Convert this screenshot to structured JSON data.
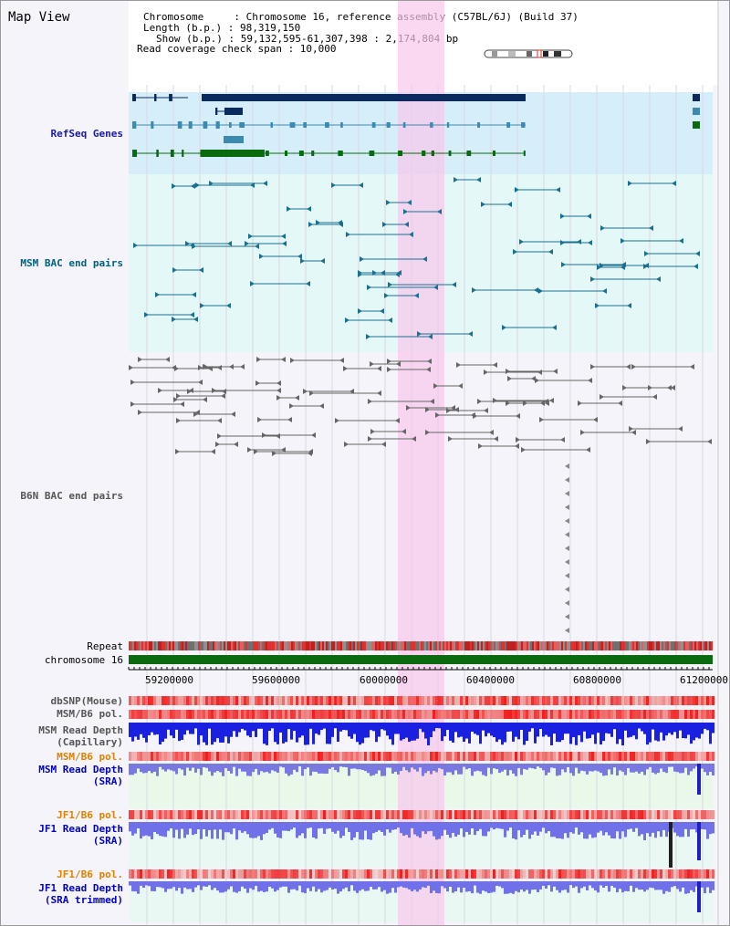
{
  "title": "Map View",
  "info": {
    "chromosome_key": "Chromosome     : Chromosome 16, reference assembly (C57BL/6J) (Build 37)",
    "length_key": "Length (b.p.) : 98,319,150",
    "show_key": "Show (b.p.) : 59,132,595-61,307,398 : 2,174,804 bp",
    "span_key": "Read coverage check span : 10,000"
  },
  "tracks": {
    "refseq": "RefSeq Genes",
    "msm_bac": "MSM BAC end pairs",
    "b6n_bac": "B6N BAC end pairs",
    "repeat": "Repeat",
    "chromosome": "chromosome 16",
    "dbsnp": "dbSNP(Mouse)",
    "msm_pol": "MSM/B6 pol.",
    "msm_depth_cap": "MSM Read Depth\n(Capillary)",
    "msm_pol2": "MSM/B6 pol.",
    "msm_depth_sra": "MSM Read Depth\n(SRA)",
    "jf1_pol": "JF1/B6 pol.",
    "jf1_depth_sra": "JF1 Read Depth\n(SRA)",
    "jf1_pol2": "JF1/B6 pol.",
    "jf1_depth_trim": "JF1 Read Depth\n(SRA trimmed)"
  },
  "ruler": [
    "59200000",
    "59600000",
    "60000000",
    "60400000",
    "60800000",
    "61200000"
  ],
  "colors": {
    "refseq_label": "#1a1aa6",
    "msm_label": "#006080",
    "b6n_label": "#555555",
    "pol_label": "#e08000",
    "depth_label": "#0000c0",
    "highlight": "#f8d0f0"
  }
}
